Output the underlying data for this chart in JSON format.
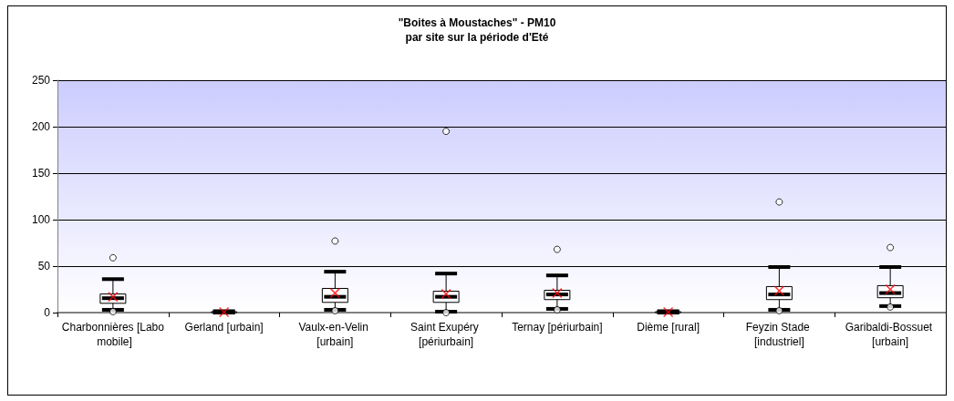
{
  "chart_data": {
    "type": "box",
    "title": "\"Boites à Moustaches\" - PM10",
    "subtitle": "par site sur la période d'Eté",
    "categories": [
      "Charbonnières [Labo mobile]",
      "Gerland [urbain]",
      "Vaulx-en-Velin [urbain]",
      "Saint Exupéry [périurbain]",
      "Ternay [périurbain]",
      "Dième [rural]",
      "Feyzin Stade [industriel]",
      "Garibaldi-Bossuet [urbain]"
    ],
    "boxes": [
      {
        "low": 3,
        "q1": 10,
        "median": 15.5,
        "q3": 20,
        "high": 36,
        "mean": 17,
        "outliers": [
          1,
          59
        ]
      },
      {
        "low": 0,
        "q1": 0,
        "median": 0.5,
        "q3": 1,
        "high": 1.5,
        "mean": 0.5
      },
      {
        "low": 3,
        "q1": 11,
        "median": 17,
        "q3": 26,
        "high": 44,
        "mean": 21,
        "outliers": [
          2,
          77
        ]
      },
      {
        "low": 1,
        "q1": 11,
        "median": 17,
        "q3": 23,
        "high": 42,
        "mean": 20,
        "outliers": [
          0,
          195
        ]
      },
      {
        "low": 4,
        "q1": 14,
        "median": 19.5,
        "q3": 24,
        "high": 40,
        "mean": 21,
        "outliers": [
          3,
          68
        ]
      },
      {
        "low": 0,
        "q1": 0,
        "median": 0.5,
        "q3": 1,
        "high": 1.5,
        "mean": 0.5
      },
      {
        "low": 3,
        "q1": 14,
        "median": 19.5,
        "q3": 28,
        "high": 49,
        "mean": 23.5,
        "outliers": [
          2,
          119
        ]
      },
      {
        "low": 7,
        "q1": 16,
        "median": 21,
        "q3": 29,
        "high": 49,
        "mean": 25,
        "outliers": [
          6,
          70
        ]
      }
    ],
    "ylim": [
      0,
      250
    ],
    "yticks": [
      0,
      50,
      100,
      150,
      200,
      250
    ],
    "grid": "y"
  }
}
